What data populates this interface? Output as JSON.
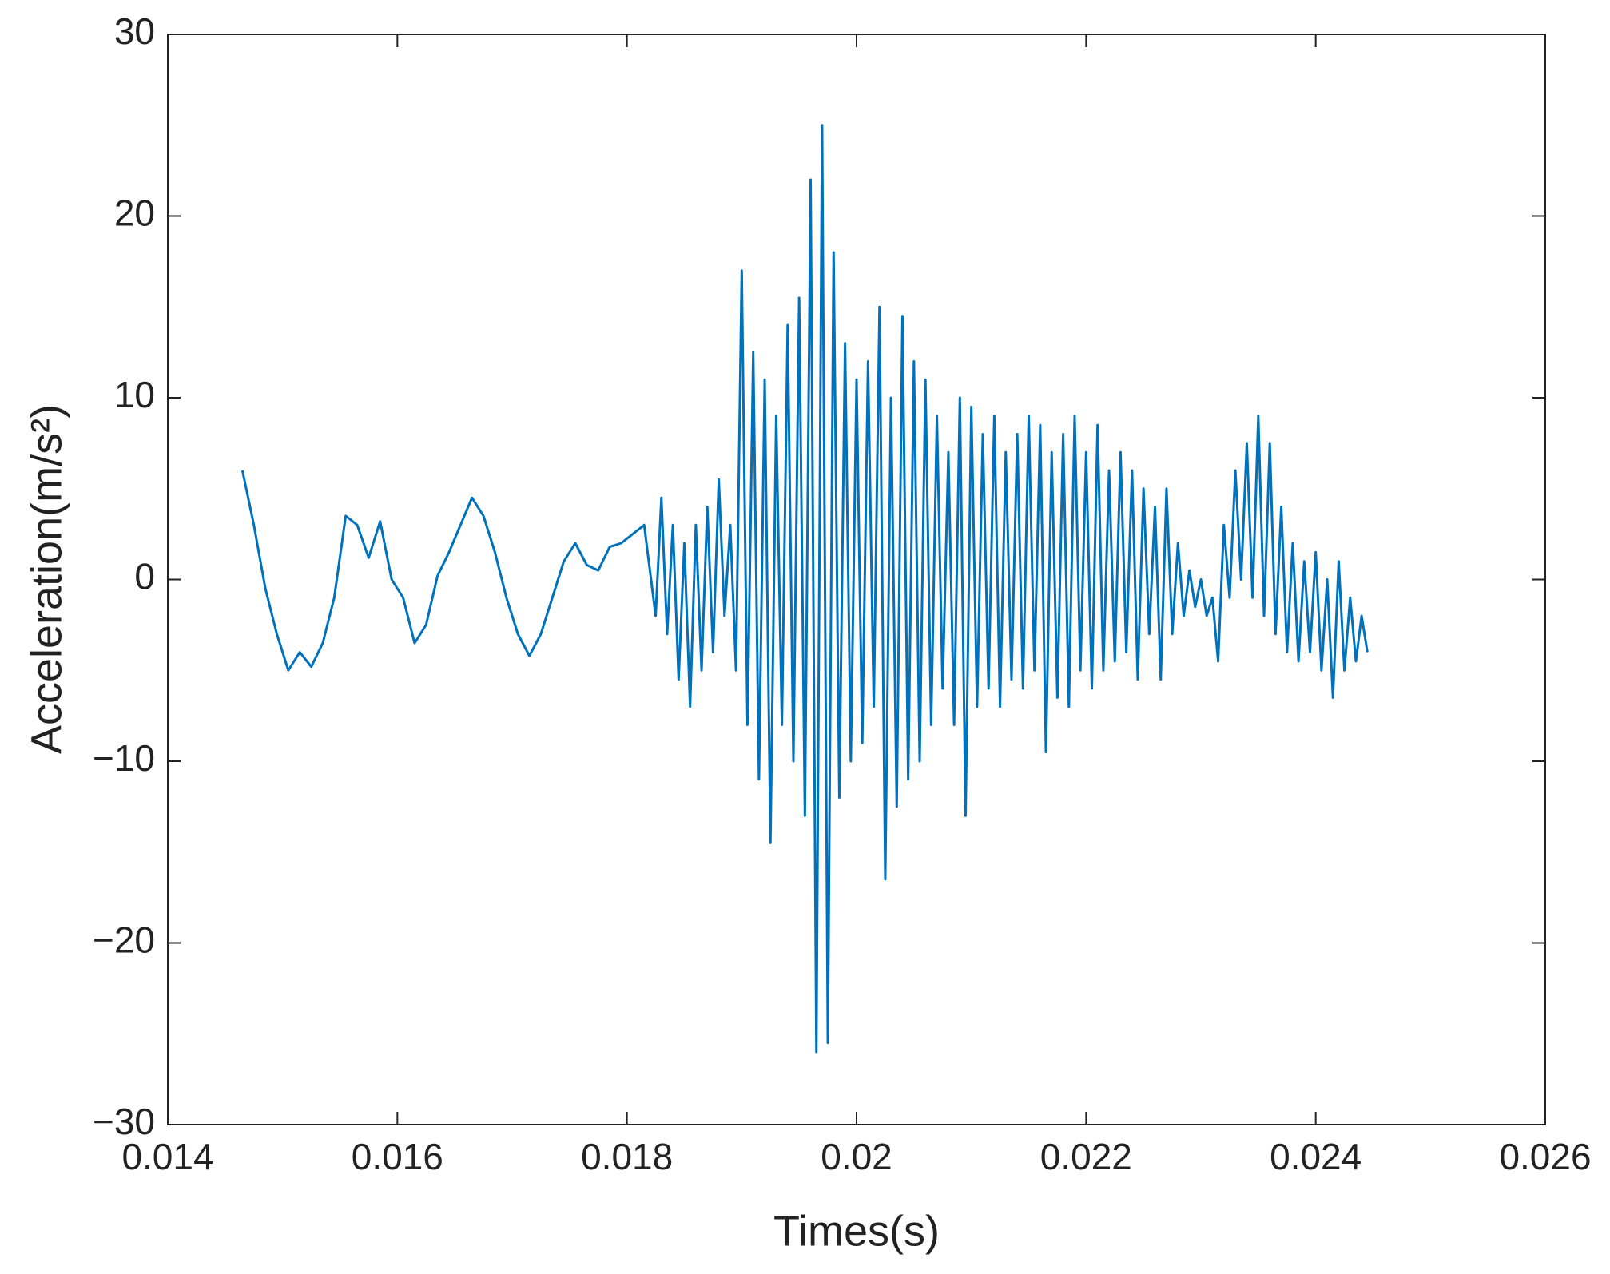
{
  "chart_data": {
    "type": "line",
    "xlabel": "Times(s)",
    "ylabel": "Acceleration(m/s²)",
    "color": "#0072bd",
    "xlim": [
      0.014,
      0.026
    ],
    "xticks": [
      0.014,
      0.016,
      0.018,
      0.02,
      0.022,
      0.024,
      0.026
    ],
    "ylim": [
      -30,
      30
    ],
    "yticks": [
      {
        "value": -30,
        "label": "−30"
      },
      {
        "value": -20,
        "label": "−20"
      },
      {
        "value": -10,
        "label": "−10"
      },
      0,
      10,
      20,
      30
    ],
    "x": [
      0.01465,
      0.01475,
      0.01485,
      0.01495,
      0.01505,
      0.01515,
      0.01525,
      0.01535,
      0.01545,
      0.01555,
      0.01565,
      0.01575,
      0.01585,
      0.01595,
      0.01605,
      0.01615,
      0.01625,
      0.01635,
      0.01645,
      0.01655,
      0.01665,
      0.01675,
      0.01685,
      0.01695,
      0.01705,
      0.01715,
      0.01725,
      0.01735,
      0.01745,
      0.01755,
      0.01765,
      0.01775,
      0.01785,
      0.01795,
      0.01805,
      0.01815,
      0.01825,
      0.0183,
      0.01835,
      0.0184,
      0.01845,
      0.0185,
      0.01855,
      0.0186,
      0.01865,
      0.0187,
      0.01875,
      0.0188,
      0.01885,
      0.0189,
      0.01895,
      0.019,
      0.01905,
      0.0191,
      0.01915,
      0.0192,
      0.01925,
      0.0193,
      0.01935,
      0.0194,
      0.01945,
      0.0195,
      0.01955,
      0.0196,
      0.01965,
      0.0197,
      0.01975,
      0.0198,
      0.01985,
      0.0199,
      0.01995,
      0.02,
      0.02005,
      0.0201,
      0.02015,
      0.0202,
      0.02025,
      0.0203,
      0.02035,
      0.0204,
      0.02045,
      0.0205,
      0.02055,
      0.0206,
      0.02065,
      0.0207,
      0.02075,
      0.0208,
      0.02085,
      0.0209,
      0.02095,
      0.021,
      0.02105,
      0.0211,
      0.02115,
      0.0212,
      0.02125,
      0.0213,
      0.02135,
      0.0214,
      0.02145,
      0.0215,
      0.02155,
      0.0216,
      0.02165,
      0.0217,
      0.02175,
      0.0218,
      0.02185,
      0.0219,
      0.02195,
      0.022,
      0.02205,
      0.0221,
      0.02215,
      0.0222,
      0.02225,
      0.0223,
      0.02235,
      0.0224,
      0.02245,
      0.0225,
      0.02255,
      0.0226,
      0.02265,
      0.0227,
      0.02275,
      0.0228,
      0.02285,
      0.0229,
      0.02295,
      0.023,
      0.02305,
      0.0231,
      0.02315,
      0.0232,
      0.02325,
      0.0233,
      0.02335,
      0.0234,
      0.02345,
      0.0235,
      0.02355,
      0.0236,
      0.02365,
      0.0237,
      0.02375,
      0.0238,
      0.02385,
      0.0239,
      0.02395,
      0.024,
      0.02405,
      0.0241,
      0.02415,
      0.0242,
      0.02425,
      0.0243,
      0.02435,
      0.0244,
      0.02445
    ],
    "values": [
      6,
      3,
      -0.5,
      -3,
      -5,
      -4,
      -4.8,
      -3.5,
      -1,
      3.5,
      3,
      1.2,
      3.2,
      0,
      -1,
      -3.5,
      -2.5,
      0.2,
      1.5,
      3,
      4.5,
      3.5,
      1.5,
      -1,
      -3,
      -4.2,
      -3,
      -1,
      1,
      2,
      0.8,
      0.5,
      1.8,
      2,
      2.5,
      3,
      -2,
      4.5,
      -3,
      3,
      -5.5,
      2,
      -7,
      3,
      -5,
      4,
      -4,
      5.5,
      -2,
      3,
      -5,
      17,
      -8,
      12.5,
      -11,
      11,
      -14.5,
      9,
      -8,
      14,
      -10,
      15.5,
      -13,
      22,
      -26,
      25,
      -25.5,
      18,
      -12,
      13,
      -10,
      11,
      -9,
      12,
      -7,
      15,
      -16.5,
      10,
      -12.5,
      14.5,
      -11,
      12,
      -10,
      11,
      -8,
      9,
      -6,
      7,
      -8,
      10,
      -13,
      9.5,
      -7,
      8,
      -6,
      9,
      -7,
      7,
      -5.5,
      8,
      -6,
      9,
      -5,
      8.5,
      -9.5,
      7,
      -6.5,
      8,
      -7,
      9,
      -5,
      7,
      -6,
      8.5,
      -5,
      6,
      -4.5,
      7,
      -4,
      6,
      -5.5,
      5,
      -3,
      4,
      -5.5,
      5,
      -3,
      2,
      -2,
      0.5,
      -1.5,
      0,
      -2,
      -1,
      -4.5,
      3,
      -1,
      6,
      0,
      7.5,
      -1,
      9,
      -2,
      7.5,
      -3,
      4,
      -4,
      2,
      -4.5,
      1,
      -4,
      1.5,
      -5,
      0,
      -6.5,
      1,
      -5,
      -1,
      -4.5,
      -2,
      -4
    ]
  }
}
